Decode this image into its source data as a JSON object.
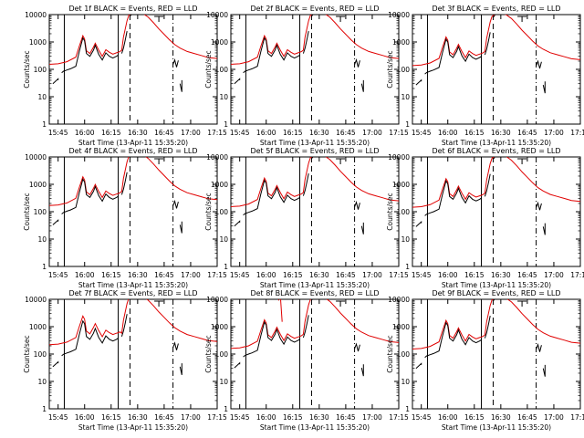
{
  "colors": {
    "events": "#000000",
    "lld": "#e00000",
    "axes": "#000000",
    "background": "#ffffff"
  },
  "chart_data": [
    {
      "type": "line",
      "title": "Det 1f BLACK = Events, RED = LLD",
      "xlabel": "Start Time (13-Apr-11 15:35:20)",
      "ylabel": "Counts/sec",
      "xticks": [
        "15:45",
        "16:00",
        "16:15",
        "16:30",
        "16:45",
        "17:00",
        "17:15"
      ],
      "yscale": "log",
      "ylim": [
        1,
        10000
      ],
      "yticks": [
        "1",
        "10",
        "100",
        "1000",
        "10000"
      ],
      "markers": {
        "solid": [
          "15:48:30",
          "16:19:00"
        ],
        "dashed": [
          "16:25:40"
        ],
        "dashdot": [
          "16:50:00"
        ]
      },
      "series": [
        {
          "name": "BLACK = Events",
          "x": [],
          "y": [],
          "segments": []
        },
        {
          "name": "RED = LLD",
          "x": [],
          "y": []
        }
      ]
    }
  ]
}
